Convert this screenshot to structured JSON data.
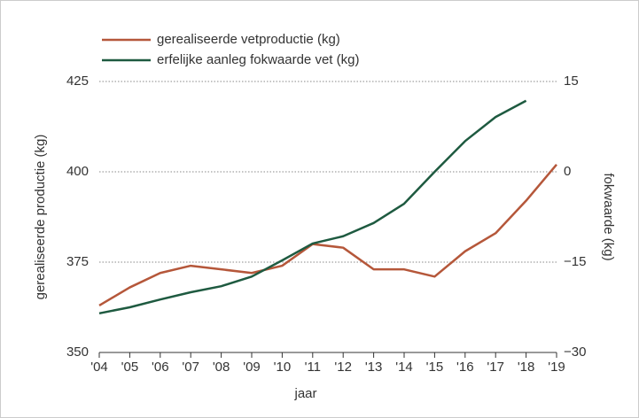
{
  "chart_data": {
    "type": "line",
    "ylabel": "gerealiseerde productie (kg)",
    "y2label": "fokwaarde (kg)",
    "xlabel": "jaar",
    "categories": [
      "'04",
      "'05",
      "'06",
      "'07",
      "'08",
      "'09",
      "'10",
      "'11",
      "'12",
      "'13",
      "'14",
      "'15",
      "'16",
      "'17",
      "'18",
      "'19"
    ],
    "series": [
      {
        "name": "gerealiseerde vetproductie (kg)",
        "color": "#b5573a",
        "axis": "y",
        "values": [
          363,
          368,
          372,
          374,
          373,
          372,
          374,
          380,
          379,
          373,
          373,
          371,
          378,
          383,
          392,
          402
        ]
      },
      {
        "name": "erfelijke aanleg fokwaarde vet (kg)",
        "color": "#1e5a40",
        "axis": "y2",
        "values": [
          -23.5,
          -22.5,
          -21.2,
          -20,
          -19,
          -17.4,
          -14.7,
          -11.9,
          -10.7,
          -8.5,
          -5.3,
          0,
          5.1,
          9.1,
          11.8,
          null
        ]
      }
    ],
    "ylim": [
      350,
      425
    ],
    "yticks": [
      350,
      375,
      400,
      425
    ],
    "y2lim": [
      -30,
      15
    ],
    "y2ticks": [
      {
        "value": -30,
        "label": "−30"
      },
      {
        "value": -15,
        "label": "−15"
      },
      0,
      15
    ],
    "grid": true
  }
}
